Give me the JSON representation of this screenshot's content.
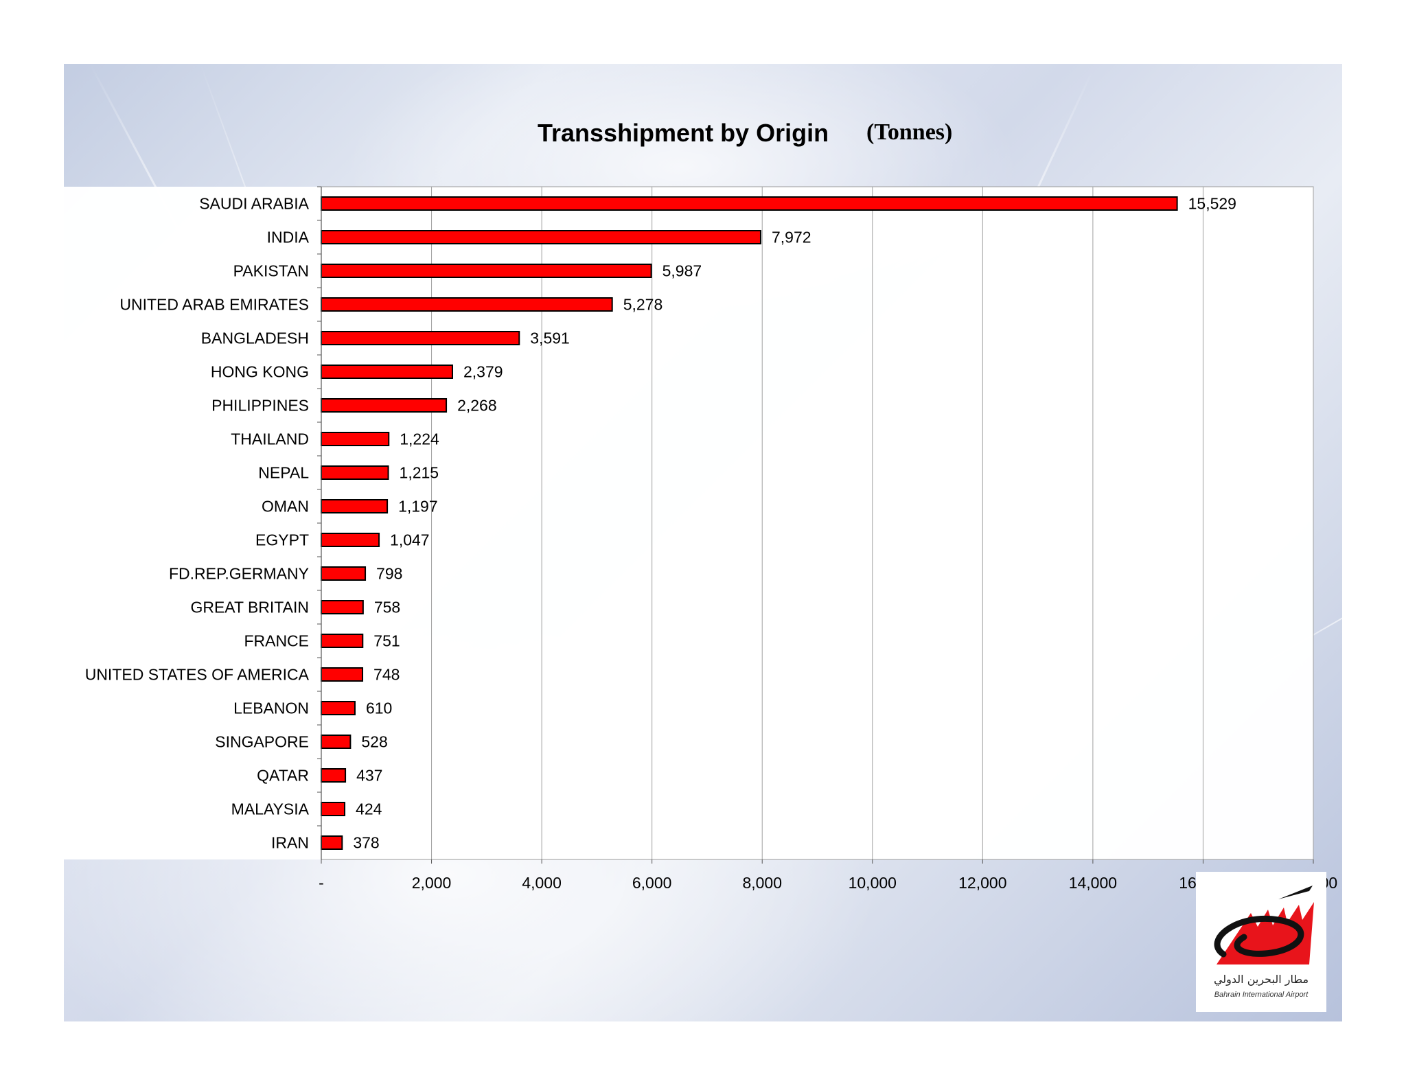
{
  "chart_data": {
    "type": "bar",
    "orientation": "horizontal",
    "title": "Transshipment by Origin",
    "unit": "(Tonnes)",
    "categories": [
      "SAUDI ARABIA",
      "INDIA",
      "PAKISTAN",
      "UNITED ARAB EMIRATES",
      "BANGLADESH",
      "HONG KONG",
      "PHILIPPINES",
      "THAILAND",
      "NEPAL",
      "OMAN",
      "EGYPT",
      "FD.REP.GERMANY",
      "GREAT BRITAIN",
      "FRANCE",
      "UNITED STATES OF AMERICA",
      "LEBANON",
      "SINGAPORE",
      "QATAR",
      "MALAYSIA",
      "IRAN"
    ],
    "values": [
      15529,
      7972,
      5987,
      5278,
      3591,
      2379,
      2268,
      1224,
      1215,
      1197,
      1047,
      798,
      758,
      751,
      748,
      610,
      528,
      437,
      424,
      378
    ],
    "value_labels": [
      "15,529",
      "7,972",
      "5,987",
      "5,278",
      "3,591",
      "2,379",
      "2,268",
      "1,224",
      "1,215",
      "1,197",
      "1,047",
      "798",
      "758",
      "751",
      "748",
      "610",
      "528",
      "437",
      "424",
      "378"
    ],
    "xlim": [
      0,
      18000
    ],
    "x_ticks": [
      0,
      2000,
      4000,
      6000,
      8000,
      10000,
      12000,
      14000,
      16000,
      18000
    ],
    "x_tick_labels": [
      "-",
      "2,000",
      "4,000",
      "6,000",
      "8,000",
      "10,000",
      "12,000",
      "14,000",
      "16,000",
      "18,000"
    ],
    "grid": true,
    "legend": "none",
    "bar_color": "#ff0000",
    "bar_edge_color": "#000000"
  },
  "logo": {
    "name": "bahrain-international-airport-logo",
    "caption": "Bahrain International Airport",
    "arabic_caption": "مطار البحرين الدولي",
    "colors": {
      "red": "#e8141b",
      "black": "#111111"
    }
  }
}
